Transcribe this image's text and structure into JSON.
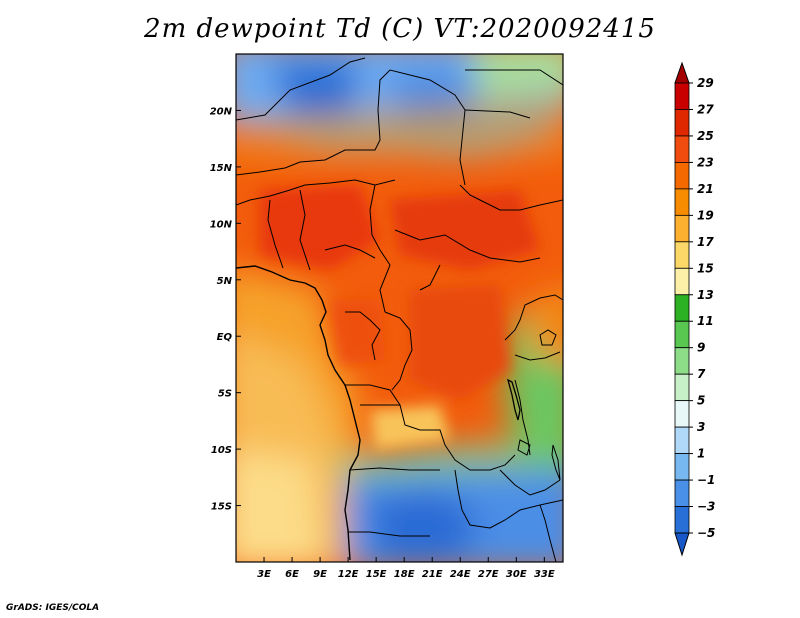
{
  "title": "2m dewpoint Td (C) VT:2020092415",
  "credit": "GrADS: IGES/COLA",
  "map": {
    "lon_ticks": [
      "3E",
      "6E",
      "9E",
      "12E",
      "15E",
      "18E",
      "21E",
      "24E",
      "27E",
      "30E",
      "33E"
    ],
    "lat_ticks": [
      "20N",
      "15N",
      "10N",
      "5N",
      "EQ",
      "5S",
      "10S",
      "15S"
    ],
    "lon_range": [
      0,
      35
    ],
    "lat_range": [
      -20,
      25
    ]
  },
  "colorbar": {
    "levels": [
      "29",
      "27",
      "25",
      "23",
      "21",
      "19",
      "17",
      "15",
      "13",
      "11",
      "9",
      "7",
      "5",
      "3",
      "1",
      "−1",
      "−3",
      "−5"
    ],
    "colors": [
      "#a50000",
      "#c80000",
      "#e02800",
      "#f04c10",
      "#f46a00",
      "#f88c00",
      "#fcb030",
      "#fcd868",
      "#fcf0a8",
      "#2cb024",
      "#58c850",
      "#8cdc88",
      "#c8f0c8",
      "#e8f8f8",
      "#b0d8f8",
      "#78b8f0",
      "#4890e8",
      "#2870d8",
      "#1858c8"
    ]
  }
}
